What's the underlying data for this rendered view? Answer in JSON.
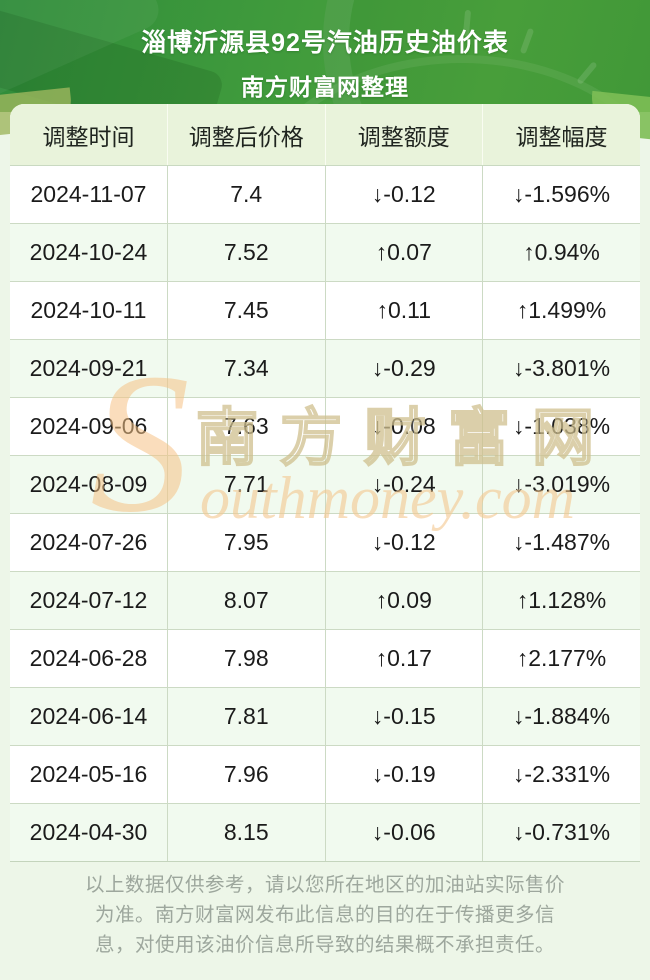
{
  "banner": {
    "title": "淄博沂源县92号汽油历史油价表",
    "subtitle": "南方财富网整理"
  },
  "table": {
    "headers": [
      "调整时间",
      "调整后价格",
      "调整额度",
      "调整幅度"
    ],
    "rows": [
      {
        "date": "2024-11-07",
        "price": "7.4",
        "change": "↓-0.12",
        "pct": "↓-1.596%",
        "dir": "down"
      },
      {
        "date": "2024-10-24",
        "price": "7.52",
        "change": "↑0.07",
        "pct": "↑0.94%",
        "dir": "up"
      },
      {
        "date": "2024-10-11",
        "price": "7.45",
        "change": "↑0.11",
        "pct": "↑1.499%",
        "dir": "up"
      },
      {
        "date": "2024-09-21",
        "price": "7.34",
        "change": "↓-0.29",
        "pct": "↓-3.801%",
        "dir": "down"
      },
      {
        "date": "2024-09-06",
        "price": "7.63",
        "change": "↓-0.08",
        "pct": "↓-1.038%",
        "dir": "down"
      },
      {
        "date": "2024-08-09",
        "price": "7.71",
        "change": "↓-0.24",
        "pct": "↓-3.019%",
        "dir": "down"
      },
      {
        "date": "2024-07-26",
        "price": "7.95",
        "change": "↓-0.12",
        "pct": "↓-1.487%",
        "dir": "down"
      },
      {
        "date": "2024-07-12",
        "price": "8.07",
        "change": "↑0.09",
        "pct": "↑1.128%",
        "dir": "up"
      },
      {
        "date": "2024-06-28",
        "price": "7.98",
        "change": "↑0.17",
        "pct": "↑2.177%",
        "dir": "up"
      },
      {
        "date": "2024-06-14",
        "price": "7.81",
        "change": "↓-0.15",
        "pct": "↓-1.884%",
        "dir": "down"
      },
      {
        "date": "2024-05-16",
        "price": "7.96",
        "change": "↓-0.19",
        "pct": "↓-2.331%",
        "dir": "down"
      },
      {
        "date": "2024-04-30",
        "price": "8.15",
        "change": "↓-0.06",
        "pct": "↓-0.731%",
        "dir": "down"
      }
    ]
  },
  "chart_data": {
    "type": "table",
    "title": "淄博沂源县92号汽油历史油价表",
    "subtitle": "南方财富网整理",
    "columns": [
      "调整时间",
      "调整后价格",
      "调整额度",
      "调整幅度"
    ],
    "rows": [
      [
        "2024-11-07",
        "7.4",
        "↓-0.12",
        "↓-1.596%"
      ],
      [
        "2024-10-24",
        "7.52",
        "↑0.07",
        "↑0.94%"
      ],
      [
        "2024-10-11",
        "7.45",
        "↑0.11",
        "↑1.499%"
      ],
      [
        "2024-09-21",
        "7.34",
        "↓-0.29",
        "↓-3.801%"
      ],
      [
        "2024-09-06",
        "7.63",
        "↓-0.08",
        "↓-1.038%"
      ],
      [
        "2024-08-09",
        "7.71",
        "↓-0.24",
        "↓-3.019%"
      ],
      [
        "2024-07-26",
        "7.95",
        "↓-0.12",
        "↓-1.487%"
      ],
      [
        "2024-07-12",
        "8.07",
        "↑0.09",
        "↑1.128%"
      ],
      [
        "2024-06-28",
        "7.98",
        "↑0.17",
        "↑2.177%"
      ],
      [
        "2024-06-14",
        "7.81",
        "↓-0.15",
        "↓-1.884%"
      ],
      [
        "2024-05-16",
        "7.96",
        "↓-0.19",
        "↓-2.331%"
      ],
      [
        "2024-04-30",
        "8.15",
        "↓-0.06",
        "↓-0.731%"
      ]
    ]
  },
  "watermark": {
    "s": "S",
    "cn": "南方财富网",
    "en": "outhmoney.com"
  },
  "footer": {
    "lines": [
      "以上数据仅供参考，请以您所在地区的加油站实际售价",
      "为准。南方财富网发布此信息的目的在于传播更多信",
      "息，对使用该油价信息所导致的结果概不承担责任。"
    ]
  },
  "colors": {
    "up_red": "#fb0505",
    "down_green": "#078c07",
    "banner_green_start": "#2f8c3a",
    "banner_green_end": "#4ca43e",
    "header_row_bg": "#e9f3db",
    "alt_row_bg": "#f1faef",
    "grid_line": "#ccdac4",
    "page_bg": "#edf6e8",
    "footer_text": "#9da79d"
  }
}
